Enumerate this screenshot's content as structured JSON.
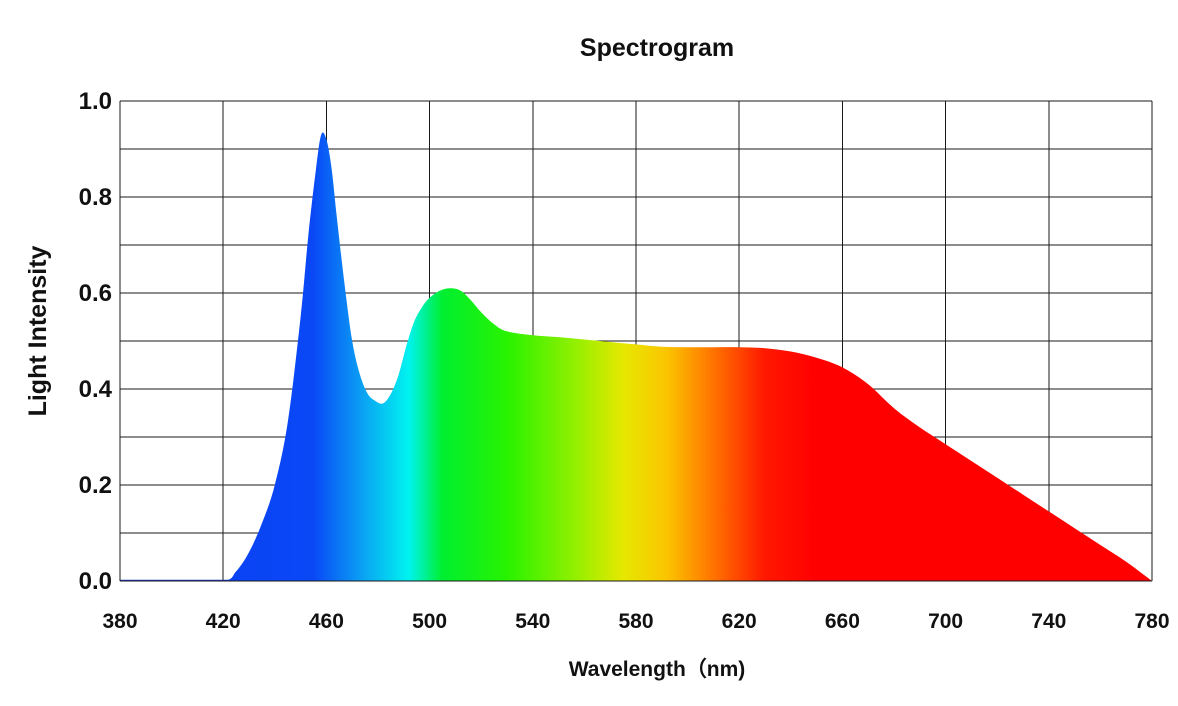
{
  "chart_data": {
    "type": "area",
    "title": "Spectrogram",
    "xlabel": "Wavelength（nm)",
    "ylabel": "Light Intensity",
    "xlim": [
      380,
      780
    ],
    "ylim": [
      0.0,
      1.0
    ],
    "x_ticks": [
      380,
      420,
      460,
      500,
      540,
      580,
      620,
      660,
      700,
      740,
      780
    ],
    "x_tick_labels": [
      "380",
      "420",
      "460",
      "500",
      "540",
      "580",
      "620",
      "660",
      "700",
      "740",
      "780"
    ],
    "y_ticks": [
      0.0,
      0.2,
      0.4,
      0.6,
      0.8,
      1.0
    ],
    "y_tick_labels": [
      "0.0",
      "0.2",
      "0.4",
      "0.6",
      "0.8",
      "1.0"
    ],
    "grid": true,
    "fill": "spectral rainbow gradient (blue to red)",
    "series": [
      {
        "x": [
          380,
          400,
          420,
          425,
          430,
          435,
          440,
          445,
          450,
          453,
          456,
          458,
          460,
          462,
          464,
          467,
          470,
          473,
          476,
          479,
          482,
          485,
          488,
          491,
          494,
          497,
          500,
          504,
          508,
          512,
          516,
          520,
          525,
          530,
          540,
          550,
          560,
          570,
          580,
          590,
          600,
          610,
          620,
          630,
          640,
          650,
          660,
          670,
          680,
          690,
          700,
          710,
          720,
          730,
          740,
          750,
          760,
          770,
          780
        ],
        "values": [
          0.0,
          0.0,
          0.0,
          0.02,
          0.06,
          0.12,
          0.2,
          0.33,
          0.55,
          0.72,
          0.86,
          0.93,
          0.92,
          0.86,
          0.76,
          0.62,
          0.5,
          0.43,
          0.39,
          0.375,
          0.37,
          0.39,
          0.43,
          0.49,
          0.54,
          0.57,
          0.59,
          0.605,
          0.61,
          0.605,
          0.585,
          0.56,
          0.535,
          0.52,
          0.512,
          0.508,
          0.503,
          0.498,
          0.493,
          0.488,
          0.487,
          0.487,
          0.487,
          0.485,
          0.478,
          0.465,
          0.445,
          0.41,
          0.36,
          0.32,
          0.285,
          0.25,
          0.215,
          0.18,
          0.145,
          0.11,
          0.075,
          0.04,
          0.0
        ]
      }
    ]
  },
  "colors": {
    "gradient_stops": [
      {
        "x": 380,
        "color": "#0a3cf0"
      },
      {
        "x": 455,
        "color": "#0a48f6"
      },
      {
        "x": 475,
        "color": "#0aa6f3"
      },
      {
        "x": 492,
        "color": "#00f3f0"
      },
      {
        "x": 505,
        "color": "#00ef30"
      },
      {
        "x": 530,
        "color": "#28f200"
      },
      {
        "x": 555,
        "color": "#8cf000"
      },
      {
        "x": 575,
        "color": "#e6e800"
      },
      {
        "x": 592,
        "color": "#fbc400"
      },
      {
        "x": 612,
        "color": "#ff6a00"
      },
      {
        "x": 630,
        "color": "#ff1800"
      },
      {
        "x": 650,
        "color": "#ff0000"
      },
      {
        "x": 780,
        "color": "#ff0000"
      }
    ],
    "baseline_line": "#1a3ad8",
    "grid": "#1a1a1a"
  }
}
